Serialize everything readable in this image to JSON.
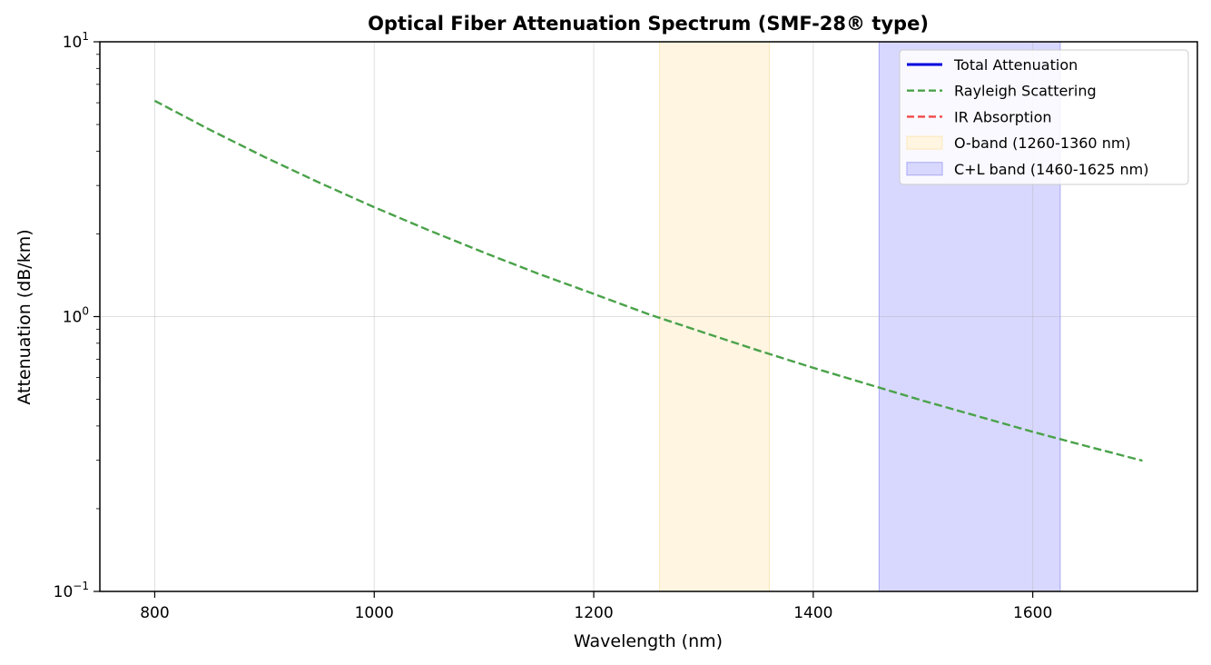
{
  "chart_data": {
    "type": "line",
    "title": "Optical Fiber Attenuation Spectrum (SMF-28® type)",
    "xlabel": "Wavelength (nm)",
    "ylabel": "Attenuation (dB/km)",
    "xlim": [
      750,
      1750
    ],
    "ylim": [
      0.1,
      10
    ],
    "yscale": "log",
    "grid": true,
    "legend_position": "top-right",
    "x_ticks": [
      800,
      1000,
      1200,
      1400,
      1600
    ],
    "x_tick_labels": [
      "800",
      "1000",
      "1200",
      "1400",
      "1600"
    ],
    "y_ticks": [
      {
        "value": 0.1,
        "base": "10",
        "exp": "−1"
      },
      {
        "value": 1,
        "base": "10",
        "exp": "0"
      },
      {
        "value": 10,
        "base": "10",
        "exp": "1"
      }
    ],
    "bands": [
      {
        "name": "O-band (1260-1360 nm)",
        "start": 1260,
        "end": 1360,
        "color": "#fff5e1",
        "border": "#fbe6b8"
      },
      {
        "name": "C+L band (1460-1625 nm)",
        "start": 1460,
        "end": 1625,
        "color": "#d8d8fe",
        "border": "#a8a8f4"
      }
    ],
    "series": [
      {
        "name": "Total Attenuation",
        "color": "#0000dd",
        "dash": "solid",
        "x": [],
        "y": []
      },
      {
        "name": "Rayleigh Scattering",
        "color": "#4aa24a",
        "dash": "dashed",
        "x": [
          800,
          850,
          900,
          950,
          1000,
          1050,
          1100,
          1150,
          1200,
          1250,
          1300,
          1350,
          1400,
          1450,
          1500,
          1550,
          1600,
          1650,
          1700
        ],
        "y": [
          6.1,
          4.79,
          3.81,
          3.07,
          2.5,
          2.06,
          1.71,
          1.43,
          1.21,
          1.02,
          0.875,
          0.753,
          0.651,
          0.567,
          0.494,
          0.434,
          0.381,
          0.337,
          0.299
        ]
      },
      {
        "name": "IR Absorption",
        "color": "#f04848",
        "dash": "dashed",
        "x": [],
        "y": []
      }
    ]
  }
}
